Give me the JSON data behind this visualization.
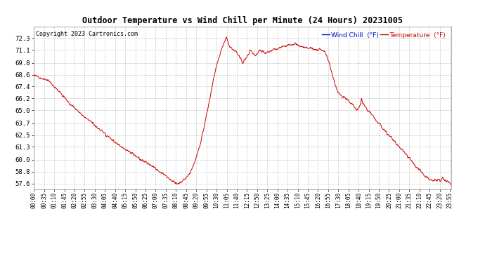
{
  "title": "Outdoor Temperature vs Wind Chill per Minute (24 Hours) 20231005",
  "copyright": "Copyright 2023 Cartronics.com",
  "legend_wind_chill": "Wind Chill  (°F)",
  "legend_temperature": "Temperature  (°F)",
  "line_color": "#cc0000",
  "wind_chill_color": "#0000cc",
  "temperature_color": "#cc0000",
  "background_color": "#ffffff",
  "grid_color": "#bbbbbb",
  "yticks": [
    57.6,
    58.8,
    60.0,
    61.3,
    62.5,
    63.7,
    65.0,
    66.2,
    67.4,
    68.6,
    69.8,
    71.1,
    72.3
  ],
  "ymin": 57.0,
  "ymax": 73.5,
  "x_tick_interval": 35,
  "keypoints": [
    [
      0,
      68.6
    ],
    [
      50,
      68.0
    ],
    [
      70,
      67.4
    ],
    [
      100,
      66.5
    ],
    [
      120,
      65.8
    ],
    [
      150,
      65.0
    ],
    [
      180,
      64.2
    ],
    [
      210,
      63.5
    ],
    [
      240,
      62.8
    ],
    [
      270,
      62.0
    ],
    [
      300,
      61.3
    ],
    [
      330,
      60.8
    ],
    [
      355,
      60.3
    ],
    [
      370,
      60.0
    ],
    [
      390,
      59.7
    ],
    [
      410,
      59.3
    ],
    [
      430,
      58.9
    ],
    [
      450,
      58.5
    ],
    [
      465,
      58.2
    ],
    [
      475,
      57.9
    ],
    [
      490,
      57.7
    ],
    [
      495,
      57.6
    ],
    [
      510,
      57.8
    ],
    [
      525,
      58.2
    ],
    [
      540,
      58.8
    ],
    [
      555,
      59.8
    ],
    [
      570,
      61.2
    ],
    [
      585,
      63.0
    ],
    [
      600,
      65.2
    ],
    [
      615,
      67.5
    ],
    [
      630,
      69.5
    ],
    [
      645,
      71.0
    ],
    [
      655,
      71.8
    ],
    [
      660,
      72.1
    ],
    [
      663,
      72.3
    ],
    [
      668,
      72.0
    ],
    [
      675,
      71.5
    ],
    [
      685,
      71.2
    ],
    [
      695,
      71.0
    ],
    [
      705,
      70.5
    ],
    [
      715,
      70.2
    ],
    [
      720,
      69.8
    ],
    [
      725,
      70.0
    ],
    [
      730,
      70.3
    ],
    [
      735,
      70.5
    ],
    [
      740,
      70.7
    ],
    [
      745,
      70.9
    ],
    [
      750,
      71.0
    ],
    [
      755,
      70.8
    ],
    [
      760,
      70.6
    ],
    [
      765,
      70.5
    ],
    [
      770,
      70.7
    ],
    [
      775,
      71.0
    ],
    [
      780,
      71.1
    ],
    [
      790,
      71.0
    ],
    [
      800,
      70.8
    ],
    [
      810,
      70.9
    ],
    [
      820,
      71.1
    ],
    [
      830,
      71.2
    ],
    [
      840,
      71.3
    ],
    [
      855,
      71.4
    ],
    [
      870,
      71.5
    ],
    [
      885,
      71.6
    ],
    [
      900,
      71.7
    ],
    [
      915,
      71.5
    ],
    [
      930,
      71.4
    ],
    [
      945,
      71.3
    ],
    [
      960,
      71.2
    ],
    [
      970,
      71.1
    ],
    [
      975,
      71.15
    ],
    [
      980,
      71.1
    ],
    [
      985,
      71.2
    ],
    [
      990,
      71.1
    ],
    [
      1000,
      71.0
    ],
    [
      1010,
      70.5
    ],
    [
      1020,
      69.8
    ],
    [
      1030,
      68.5
    ],
    [
      1040,
      67.5
    ],
    [
      1050,
      66.8
    ],
    [
      1060,
      66.5
    ],
    [
      1070,
      66.3
    ],
    [
      1080,
      66.2
    ],
    [
      1090,
      65.8
    ],
    [
      1100,
      65.5
    ],
    [
      1110,
      65.2
    ],
    [
      1115,
      65.0
    ],
    [
      1120,
      65.2
    ],
    [
      1125,
      65.5
    ],
    [
      1130,
      66.2
    ],
    [
      1135,
      65.8
    ],
    [
      1140,
      65.5
    ],
    [
      1145,
      65.2
    ],
    [
      1150,
      65.0
    ],
    [
      1160,
      64.8
    ],
    [
      1170,
      64.5
    ],
    [
      1180,
      64.0
    ],
    [
      1190,
      63.7
    ],
    [
      1200,
      63.3
    ],
    [
      1215,
      62.8
    ],
    [
      1230,
      62.3
    ],
    [
      1245,
      61.8
    ],
    [
      1260,
      61.3
    ],
    [
      1275,
      60.8
    ],
    [
      1290,
      60.3
    ],
    [
      1305,
      59.8
    ],
    [
      1320,
      59.2
    ],
    [
      1335,
      58.8
    ],
    [
      1350,
      58.4
    ],
    [
      1365,
      58.0
    ],
    [
      1380,
      57.9
    ],
    [
      1390,
      57.9
    ],
    [
      1400,
      57.9
    ],
    [
      1405,
      58.0
    ],
    [
      1410,
      58.1
    ],
    [
      1415,
      58.0
    ],
    [
      1420,
      57.9
    ],
    [
      1425,
      57.8
    ],
    [
      1430,
      57.7
    ],
    [
      1435,
      57.65
    ],
    [
      1439,
      57.6
    ]
  ]
}
